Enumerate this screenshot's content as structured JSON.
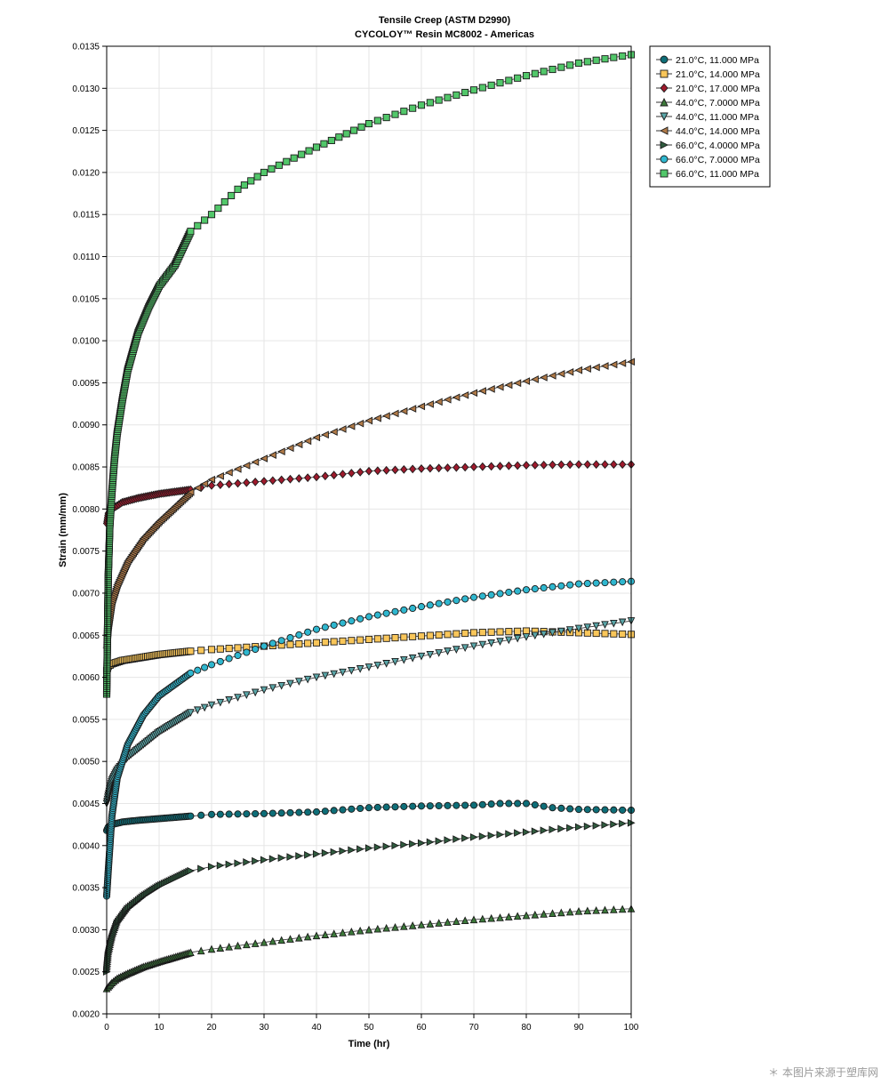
{
  "chart_data": {
    "type": "line",
    "title": "Tensile Creep (ASTM D2990)",
    "subtitle": "CYCOLOY™ Resin MC8002 - Americas",
    "xlabel": "Time (hr)",
    "ylabel": "Strain (mm/mm)",
    "xlim": [
      0,
      100
    ],
    "ylim": [
      0.002,
      0.0135
    ],
    "x_ticks": [
      "0",
      "10",
      "20",
      "30",
      "40",
      "50",
      "60",
      "70",
      "80",
      "90",
      "100"
    ],
    "y_ticks": [
      "0.0020",
      "0.0025",
      "0.0030",
      "0.0035",
      "0.0040",
      "0.0045",
      "0.0050",
      "0.0055",
      "0.0060",
      "0.0065",
      "0.0070",
      "0.0075",
      "0.0080",
      "0.0085",
      "0.0090",
      "0.0095",
      "0.0100",
      "0.0105",
      "0.0110",
      "0.0115",
      "0.0120",
      "0.0125",
      "0.0130",
      "0.0135"
    ],
    "grid": true,
    "legend_position": "top-right, outside plot",
    "series": [
      {
        "name": "21.0°C, 11.000 MPa",
        "marker": "circle",
        "color": "#0e6e78",
        "points": [
          [
            0,
            0.00418
          ],
          [
            0.3,
            0.00422
          ],
          [
            1,
            0.00425
          ],
          [
            3,
            0.00428
          ],
          [
            6,
            0.0043
          ],
          [
            10,
            0.00432
          ],
          [
            16,
            0.00435
          ],
          [
            20,
            0.00437
          ],
          [
            30,
            0.00438
          ],
          [
            40,
            0.0044
          ],
          [
            50,
            0.00445
          ],
          [
            60,
            0.00447
          ],
          [
            70,
            0.00448
          ],
          [
            75,
            0.0045
          ],
          [
            80,
            0.0045
          ],
          [
            85,
            0.00445
          ],
          [
            90,
            0.00443
          ],
          [
            100,
            0.00442
          ]
        ]
      },
      {
        "name": "21.0°C, 14.000 MPa",
        "marker": "square",
        "color": "#f9c65a",
        "points": [
          [
            0,
            0.00608
          ],
          [
            0.3,
            0.00613
          ],
          [
            1,
            0.00616
          ],
          [
            3,
            0.0062
          ],
          [
            6,
            0.00623
          ],
          [
            10,
            0.00627
          ],
          [
            16,
            0.00631
          ],
          [
            20,
            0.00633
          ],
          [
            30,
            0.00637
          ],
          [
            40,
            0.00641
          ],
          [
            50,
            0.00645
          ],
          [
            60,
            0.00649
          ],
          [
            70,
            0.00653
          ],
          [
            80,
            0.00655
          ],
          [
            90,
            0.00653
          ],
          [
            100,
            0.00651
          ]
        ]
      },
      {
        "name": "21.0°C, 17.000 MPa",
        "marker": "diamond",
        "color": "#9e1a2c",
        "points": [
          [
            0,
            0.00783
          ],
          [
            0.3,
            0.00795
          ],
          [
            1,
            0.008
          ],
          [
            3,
            0.00808
          ],
          [
            6,
            0.00813
          ],
          [
            10,
            0.00818
          ],
          [
            16,
            0.00823
          ],
          [
            20,
            0.00828
          ],
          [
            30,
            0.00833
          ],
          [
            40,
            0.00838
          ],
          [
            50,
            0.00845
          ],
          [
            60,
            0.00848
          ],
          [
            70,
            0.0085
          ],
          [
            80,
            0.00852
          ],
          [
            90,
            0.00853
          ],
          [
            100,
            0.00853
          ]
        ]
      },
      {
        "name": "44.0°C, 7.0000 MPa",
        "marker": "triangle-up",
        "color": "#3c7a3a",
        "points": [
          [
            0,
            0.0023
          ],
          [
            0.3,
            0.00232
          ],
          [
            1,
            0.00237
          ],
          [
            2,
            0.00242
          ],
          [
            4,
            0.00248
          ],
          [
            7,
            0.00256
          ],
          [
            10,
            0.00262
          ],
          [
            16,
            0.00273
          ],
          [
            20,
            0.00277
          ],
          [
            30,
            0.00285
          ],
          [
            40,
            0.00293
          ],
          [
            50,
            0.003
          ],
          [
            60,
            0.00306
          ],
          [
            70,
            0.00312
          ],
          [
            80,
            0.00317
          ],
          [
            90,
            0.00322
          ],
          [
            100,
            0.00325
          ]
        ]
      },
      {
        "name": "44.0°C, 11.000 MPa",
        "marker": "triangle-down",
        "color": "#5aa6a8",
        "points": [
          [
            0,
            0.0045
          ],
          [
            0.3,
            0.0046
          ],
          [
            1,
            0.00478
          ],
          [
            2,
            0.0049
          ],
          [
            4,
            0.00505
          ],
          [
            7,
            0.0052
          ],
          [
            10,
            0.00535
          ],
          [
            16,
            0.00558
          ],
          [
            20,
            0.00567
          ],
          [
            30,
            0.00585
          ],
          [
            40,
            0.006
          ],
          [
            50,
            0.00612
          ],
          [
            60,
            0.00625
          ],
          [
            70,
            0.00637
          ],
          [
            80,
            0.00648
          ],
          [
            90,
            0.00658
          ],
          [
            100,
            0.00667
          ]
        ]
      },
      {
        "name": "44.0°C, 14.000 MPa",
        "marker": "triangle-left",
        "color": "#b07a48",
        "points": [
          [
            0,
            0.00635
          ],
          [
            0.3,
            0.0066
          ],
          [
            1,
            0.0069
          ],
          [
            2,
            0.0071
          ],
          [
            4,
            0.00738
          ],
          [
            7,
            0.00765
          ],
          [
            10,
            0.00785
          ],
          [
            16,
            0.0082
          ],
          [
            20,
            0.00835
          ],
          [
            30,
            0.0086
          ],
          [
            40,
            0.00885
          ],
          [
            50,
            0.00905
          ],
          [
            60,
            0.00922
          ],
          [
            70,
            0.00938
          ],
          [
            80,
            0.00952
          ],
          [
            90,
            0.00965
          ],
          [
            100,
            0.00975
          ]
        ]
      },
      {
        "name": "66.0°C, 4.0000 MPa",
        "marker": "triangle-right",
        "color": "#2f5b3e",
        "points": [
          [
            0,
            0.0025
          ],
          [
            0.3,
            0.0027
          ],
          [
            1,
            0.0029
          ],
          [
            2,
            0.00308
          ],
          [
            4,
            0.00325
          ],
          [
            7,
            0.0034
          ],
          [
            10,
            0.00352
          ],
          [
            16,
            0.0037
          ],
          [
            20,
            0.00375
          ],
          [
            30,
            0.00383
          ],
          [
            40,
            0.0039
          ],
          [
            50,
            0.00397
          ],
          [
            60,
            0.00403
          ],
          [
            70,
            0.0041
          ],
          [
            80,
            0.00416
          ],
          [
            90,
            0.00422
          ],
          [
            100,
            0.00427
          ]
        ]
      },
      {
        "name": "66.0°C, 7.0000 MPa",
        "marker": "circle",
        "color": "#2fb7cf",
        "points": [
          [
            0,
            0.0034
          ],
          [
            0.3,
            0.0037
          ],
          [
            1,
            0.00435
          ],
          [
            2,
            0.0048
          ],
          [
            4,
            0.0052
          ],
          [
            7,
            0.00555
          ],
          [
            10,
            0.00578
          ],
          [
            16,
            0.00605
          ],
          [
            20,
            0.00615
          ],
          [
            30,
            0.00637
          ],
          [
            40,
            0.00657
          ],
          [
            50,
            0.00672
          ],
          [
            60,
            0.00684
          ],
          [
            70,
            0.00695
          ],
          [
            80,
            0.00704
          ],
          [
            90,
            0.00711
          ],
          [
            100,
            0.00714
          ]
        ]
      },
      {
        "name": "66.0°C, 11.000 MPa",
        "marker": "square",
        "color": "#52c76a",
        "points": [
          [
            0,
            0.0058
          ],
          [
            0.3,
            0.0072
          ],
          [
            0.6,
            0.0078
          ],
          [
            1,
            0.0082
          ],
          [
            1.5,
            0.0086
          ],
          [
            2,
            0.0089
          ],
          [
            3,
            0.0093
          ],
          [
            4,
            0.00965
          ],
          [
            6,
            0.0101
          ],
          [
            8,
            0.0104
          ],
          [
            10,
            0.01065
          ],
          [
            13,
            0.0109
          ],
          [
            16,
            0.0113
          ],
          [
            20,
            0.0115
          ],
          [
            25,
            0.0118
          ],
          [
            30,
            0.012
          ],
          [
            40,
            0.0123
          ],
          [
            50,
            0.01258
          ],
          [
            60,
            0.0128
          ],
          [
            70,
            0.01298
          ],
          [
            80,
            0.01315
          ],
          [
            90,
            0.0133
          ],
          [
            100,
            0.0134
          ]
        ]
      }
    ]
  },
  "watermark": "＊ 本图片来源于塑库网"
}
